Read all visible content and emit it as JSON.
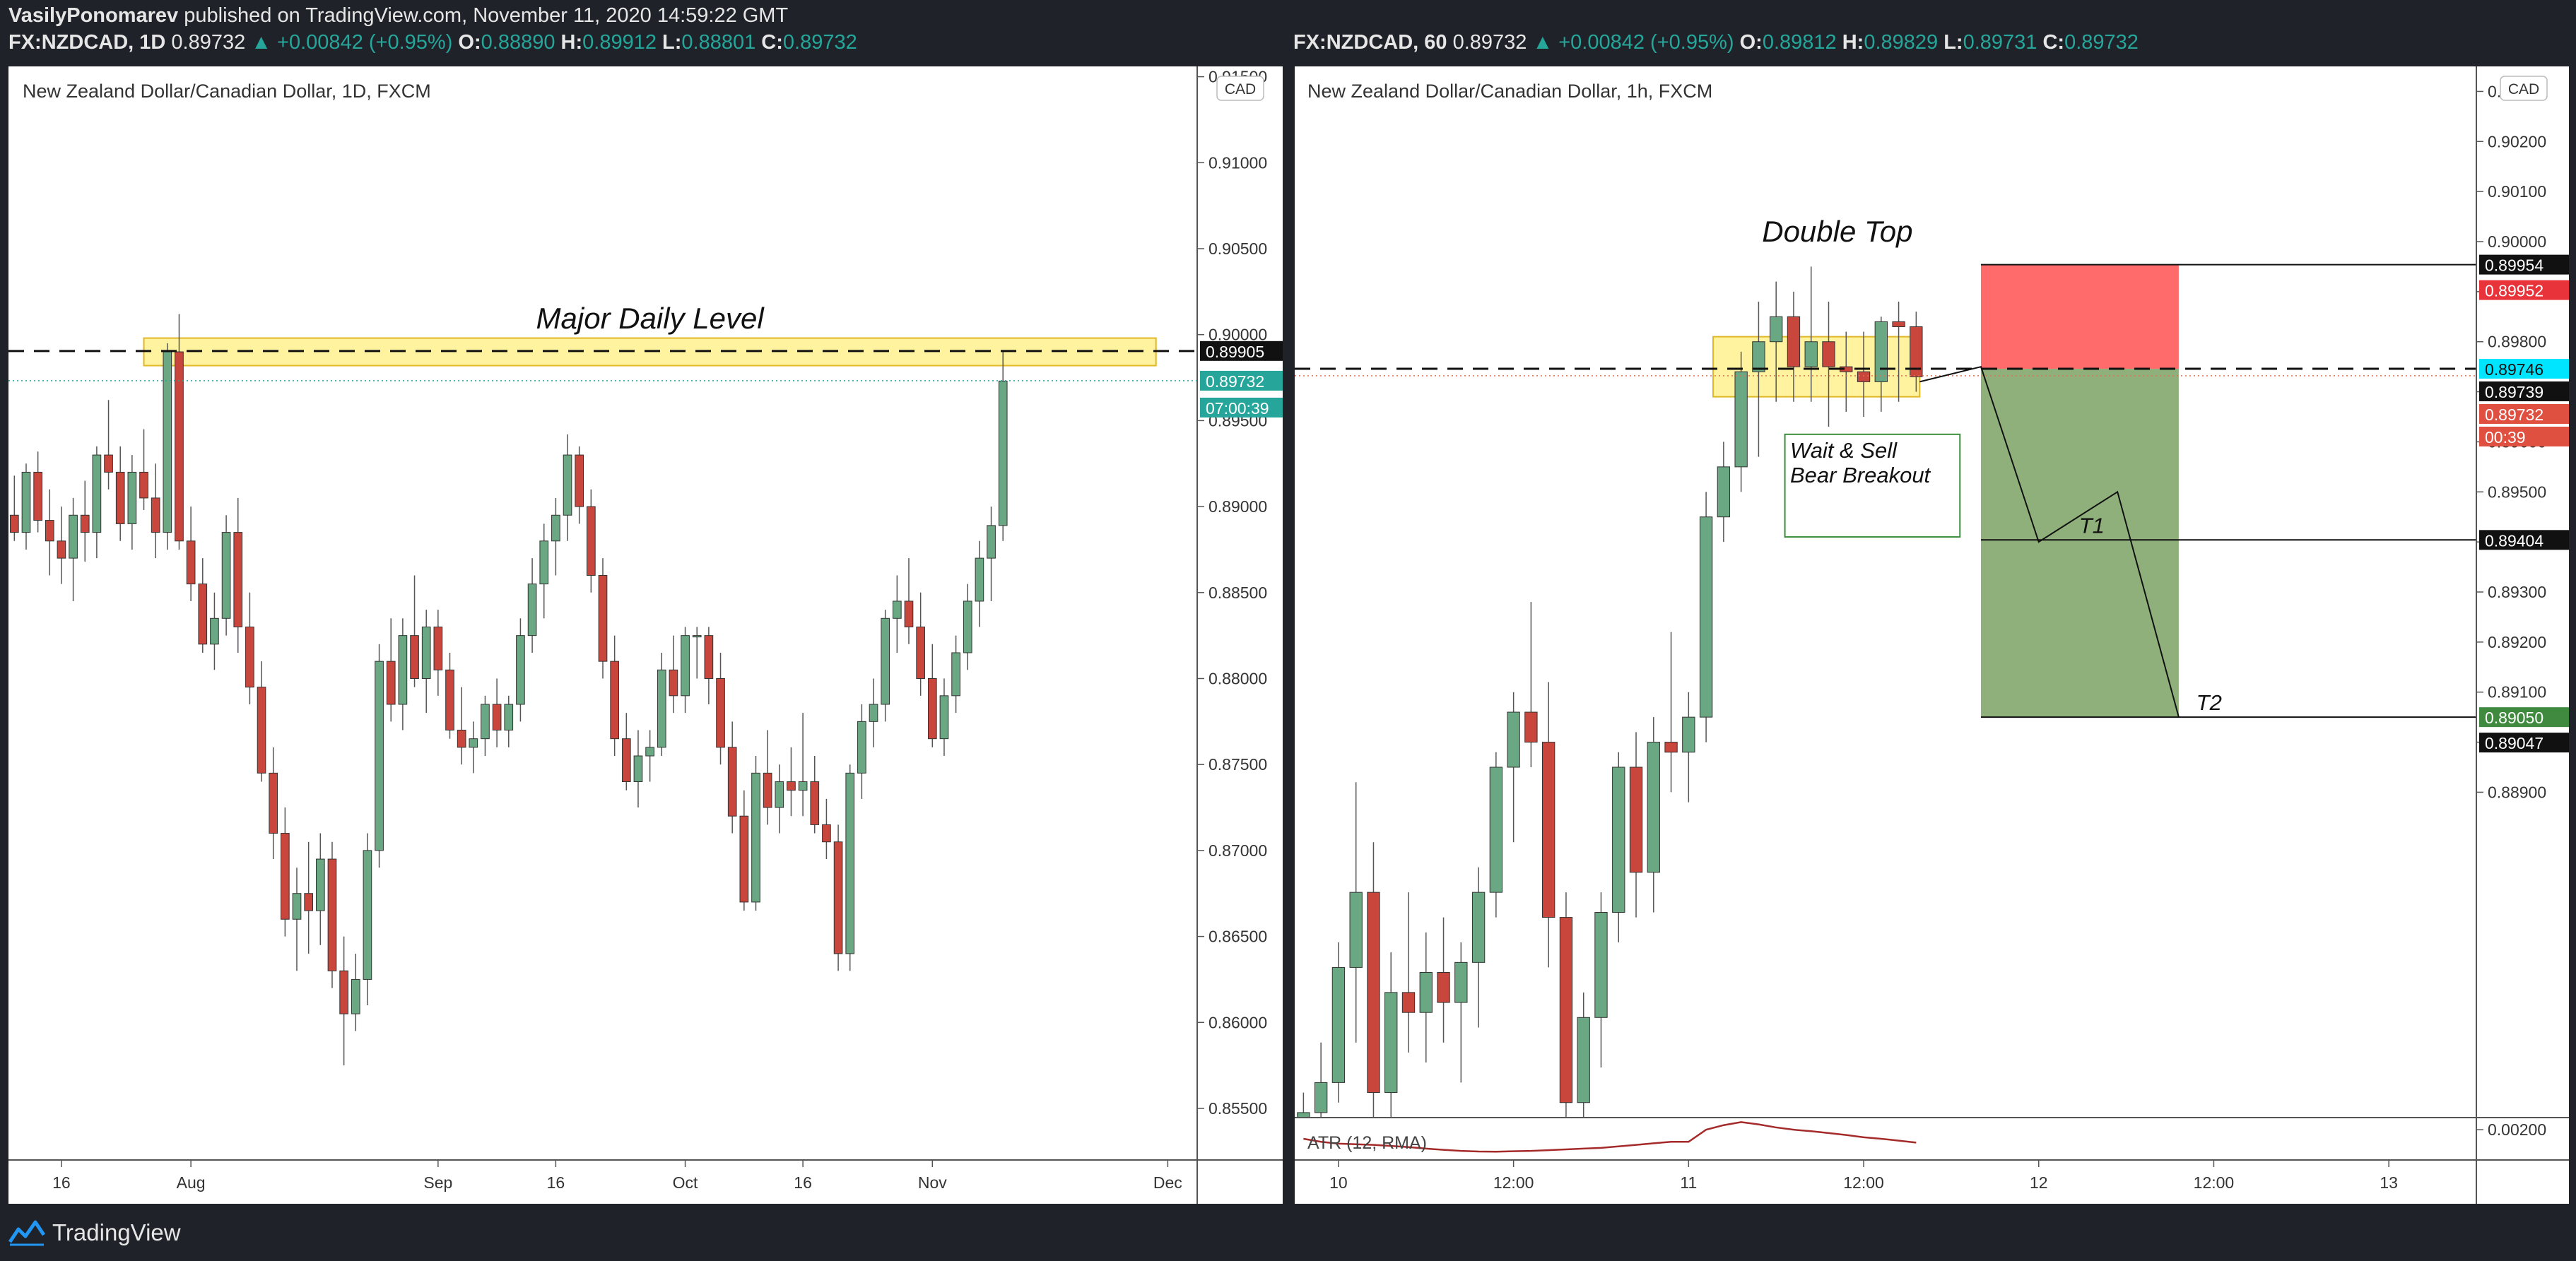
{
  "header": {
    "author": "VasilyPonomarev",
    "published_text": "published on TradingView.com, November 11, 2020 14:59:22 GMT"
  },
  "left_info": {
    "symbol": "FX:NZDCAD, 1D",
    "price": "0.89732",
    "change": "▲ +0.00842 (+0.95%)",
    "o_label": "O:",
    "o": "0.88890",
    "h_label": "H:",
    "h": "0.89912",
    "l_label": "L:",
    "l": "0.88801",
    "c_label": "C:",
    "c": "0.89732"
  },
  "right_info": {
    "symbol": "FX:NZDCAD, 60",
    "price": "0.89732",
    "change": "▲ +0.00842 (+0.95%)",
    "o_label": "O:",
    "o": "0.89812",
    "h_label": "H:",
    "h": "0.89829",
    "l_label": "L:",
    "l": "0.89731",
    "c_label": "C:",
    "c": "0.89732"
  },
  "footer": {
    "brand": "TradingView"
  },
  "colors": {
    "bull": "#6aa883",
    "bear": "#c9463d",
    "wick": "#555555",
    "level_fill": "#fff3a0",
    "level_border": "#e0b726",
    "stop_fill": "#ff6b6b",
    "target_fill": "#8fb07a",
    "atr": "#a52a2a",
    "accent_teal": "#26a69a"
  },
  "chart_data": [
    {
      "type": "candlestick",
      "title": "New Zealand Dollar/Canadian Dollar, 1D, FXCM",
      "currency_badge": "CAD",
      "ylim": [
        0.852,
        0.9156
      ],
      "y_ticks": [
        "0.85500",
        "0.86000",
        "0.86500",
        "0.87000",
        "0.87500",
        "0.88000",
        "0.88500",
        "0.89000",
        "0.89500",
        "0.90000",
        "0.90500",
        "0.91000",
        "0.91500"
      ],
      "x_labels": [
        {
          "label": "16",
          "bar": 4
        },
        {
          "label": "Aug",
          "bar": 15
        },
        {
          "label": "Sep",
          "bar": 36
        },
        {
          "label": "16",
          "bar": 46
        },
        {
          "label": "Oct",
          "bar": 57
        },
        {
          "label": "16",
          "bar": 67
        },
        {
          "label": "Nov",
          "bar": 78
        },
        {
          "label": "Dec",
          "bar": 98
        }
      ],
      "x_domain": [
        -0.5,
        100.5
      ],
      "candles": [
        [
          0.8895,
          0.8918,
          0.888,
          0.8885
        ],
        [
          0.8885,
          0.8925,
          0.8875,
          0.892
        ],
        [
          0.892,
          0.8932,
          0.8885,
          0.8892
        ],
        [
          0.8892,
          0.891,
          0.886,
          0.888
        ],
        [
          0.888,
          0.89,
          0.8855,
          0.887
        ],
        [
          0.887,
          0.8905,
          0.8845,
          0.8895
        ],
        [
          0.8895,
          0.8915,
          0.8868,
          0.8885
        ],
        [
          0.8885,
          0.8935,
          0.887,
          0.893
        ],
        [
          0.893,
          0.8962,
          0.891,
          0.892
        ],
        [
          0.892,
          0.8935,
          0.888,
          0.889
        ],
        [
          0.889,
          0.893,
          0.8875,
          0.892
        ],
        [
          0.892,
          0.8945,
          0.8898,
          0.8905
        ],
        [
          0.8905,
          0.8925,
          0.887,
          0.8885
        ],
        [
          0.8885,
          0.8995,
          0.8875,
          0.899
        ],
        [
          0.899,
          0.9012,
          0.8875,
          0.888
        ],
        [
          0.888,
          0.89,
          0.8845,
          0.8855
        ],
        [
          0.8855,
          0.887,
          0.8815,
          0.882
        ],
        [
          0.882,
          0.885,
          0.8805,
          0.8835
        ],
        [
          0.8835,
          0.8895,
          0.8825,
          0.8885
        ],
        [
          0.8885,
          0.8905,
          0.8815,
          0.883
        ],
        [
          0.883,
          0.885,
          0.8785,
          0.8795
        ],
        [
          0.8795,
          0.881,
          0.874,
          0.8745
        ],
        [
          0.8745,
          0.876,
          0.8695,
          0.871
        ],
        [
          0.871,
          0.8725,
          0.865,
          0.866
        ],
        [
          0.866,
          0.869,
          0.863,
          0.8675
        ],
        [
          0.8675,
          0.8705,
          0.864,
          0.8665
        ],
        [
          0.8665,
          0.871,
          0.8645,
          0.8695
        ],
        [
          0.8695,
          0.8705,
          0.862,
          0.863
        ],
        [
          0.863,
          0.865,
          0.8575,
          0.8605
        ],
        [
          0.8605,
          0.864,
          0.8595,
          0.8625
        ],
        [
          0.8625,
          0.871,
          0.861,
          0.87
        ],
        [
          0.87,
          0.882,
          0.869,
          0.881
        ],
        [
          0.881,
          0.8835,
          0.8775,
          0.8785
        ],
        [
          0.8785,
          0.8835,
          0.877,
          0.8825
        ],
        [
          0.8825,
          0.886,
          0.8795,
          0.88
        ],
        [
          0.88,
          0.884,
          0.878,
          0.883
        ],
        [
          0.883,
          0.884,
          0.879,
          0.8805
        ],
        [
          0.8805,
          0.8815,
          0.8765,
          0.877
        ],
        [
          0.877,
          0.8795,
          0.875,
          0.876
        ],
        [
          0.876,
          0.8775,
          0.8745,
          0.8765
        ],
        [
          0.8765,
          0.879,
          0.8755,
          0.8785
        ],
        [
          0.8785,
          0.88,
          0.876,
          0.877
        ],
        [
          0.877,
          0.879,
          0.876,
          0.8785
        ],
        [
          0.8785,
          0.8835,
          0.8775,
          0.8825
        ],
        [
          0.8825,
          0.887,
          0.8815,
          0.8855
        ],
        [
          0.8855,
          0.889,
          0.8835,
          0.888
        ],
        [
          0.888,
          0.8905,
          0.886,
          0.8895
        ],
        [
          0.8895,
          0.8942,
          0.888,
          0.893
        ],
        [
          0.893,
          0.8935,
          0.889,
          0.89
        ],
        [
          0.89,
          0.891,
          0.885,
          0.886
        ],
        [
          0.886,
          0.887,
          0.88,
          0.881
        ],
        [
          0.881,
          0.8825,
          0.8755,
          0.8765
        ],
        [
          0.8765,
          0.878,
          0.8735,
          0.874
        ],
        [
          0.874,
          0.877,
          0.8725,
          0.8755
        ],
        [
          0.8755,
          0.877,
          0.874,
          0.876
        ],
        [
          0.876,
          0.8815,
          0.8755,
          0.8805
        ],
        [
          0.8805,
          0.8825,
          0.878,
          0.879
        ],
        [
          0.879,
          0.883,
          0.878,
          0.8825
        ],
        [
          0.8825,
          0.883,
          0.88,
          0.8825
        ],
        [
          0.8825,
          0.883,
          0.8785,
          0.88
        ],
        [
          0.88,
          0.8815,
          0.875,
          0.876
        ],
        [
          0.876,
          0.8775,
          0.871,
          0.872
        ],
        [
          0.872,
          0.8735,
          0.8665,
          0.867
        ],
        [
          0.867,
          0.8755,
          0.8665,
          0.8745
        ],
        [
          0.8745,
          0.877,
          0.8715,
          0.8725
        ],
        [
          0.8725,
          0.875,
          0.871,
          0.874
        ],
        [
          0.874,
          0.876,
          0.872,
          0.8735
        ],
        [
          0.8735,
          0.878,
          0.872,
          0.874
        ],
        [
          0.874,
          0.8755,
          0.871,
          0.8715
        ],
        [
          0.8715,
          0.873,
          0.8695,
          0.8705
        ],
        [
          0.8705,
          0.8715,
          0.863,
          0.864
        ],
        [
          0.864,
          0.875,
          0.863,
          0.8745
        ],
        [
          0.8745,
          0.8785,
          0.873,
          0.8775
        ],
        [
          0.8775,
          0.88,
          0.876,
          0.8785
        ],
        [
          0.8785,
          0.884,
          0.8775,
          0.8835
        ],
        [
          0.8835,
          0.886,
          0.8815,
          0.8845
        ],
        [
          0.8845,
          0.887,
          0.882,
          0.883
        ],
        [
          0.883,
          0.885,
          0.879,
          0.88
        ],
        [
          0.88,
          0.882,
          0.876,
          0.8765
        ],
        [
          0.8765,
          0.88,
          0.8755,
          0.879
        ],
        [
          0.879,
          0.8825,
          0.878,
          0.8815
        ],
        [
          0.8815,
          0.8855,
          0.8805,
          0.8845
        ],
        [
          0.8845,
          0.888,
          0.883,
          0.887
        ],
        [
          0.887,
          0.89,
          0.8845,
          0.8889
        ],
        [
          0.8889,
          0.8991,
          0.888,
          0.8973
        ]
      ],
      "level": {
        "label": "Major Daily Level",
        "price": 0.89905,
        "zone": [
          0.8982,
          0.8998
        ]
      },
      "labels": {
        "level_price": "0.89905",
        "last_price": "0.89732",
        "countdown": "07:00:39"
      }
    },
    {
      "type": "candlestick",
      "title": "New Zealand Dollar/Canadian Dollar, 1h, FXCM",
      "currency_badge": "CAD",
      "ylim": [
        0.8825,
        0.9035
      ],
      "y_ticks": [
        "0.88900",
        "0.89000",
        "0.89100",
        "0.89200",
        "0.89300",
        "0.89400",
        "0.89500",
        "0.89600",
        "0.89700",
        "0.89800",
        "0.89900",
        "0.90000",
        "0.90100",
        "0.90200",
        "0.90300"
      ],
      "x_labels": [
        {
          "label": "10",
          "bar": 2
        },
        {
          "label": "12:00",
          "bar": 12
        },
        {
          "label": "11",
          "bar": 22
        },
        {
          "label": "12:00",
          "bar": 32
        },
        {
          "label": "12",
          "bar": 42
        },
        {
          "label": "12:00",
          "bar": 52
        },
        {
          "label": "13",
          "bar": 62
        }
      ],
      "x_domain": [
        -0.5,
        67
      ],
      "candles": [
        [
          0.881,
          0.883,
          0.8802,
          0.8826
        ],
        [
          0.8826,
          0.884,
          0.8815,
          0.8832
        ],
        [
          0.8832,
          0.886,
          0.8828,
          0.8855
        ],
        [
          0.8855,
          0.8892,
          0.884,
          0.887
        ],
        [
          0.887,
          0.888,
          0.8825,
          0.883
        ],
        [
          0.883,
          0.8858,
          0.8822,
          0.885
        ],
        [
          0.885,
          0.887,
          0.8838,
          0.8846
        ],
        [
          0.8846,
          0.8862,
          0.8836,
          0.8854
        ],
        [
          0.8854,
          0.8865,
          0.884,
          0.8848
        ],
        [
          0.8848,
          0.886,
          0.8832,
          0.8856
        ],
        [
          0.8856,
          0.8875,
          0.8843,
          0.887
        ],
        [
          0.887,
          0.8898,
          0.8865,
          0.8895
        ],
        [
          0.8895,
          0.891,
          0.888,
          0.8906
        ],
        [
          0.8906,
          0.8928,
          0.8895,
          0.89
        ],
        [
          0.89,
          0.8912,
          0.8855,
          0.8865
        ],
        [
          0.8865,
          0.887,
          0.8822,
          0.8828
        ],
        [
          0.8828,
          0.885,
          0.882,
          0.8845
        ],
        [
          0.8845,
          0.887,
          0.8835,
          0.8866
        ],
        [
          0.8866,
          0.8898,
          0.886,
          0.8895
        ],
        [
          0.8895,
          0.8902,
          0.8865,
          0.8874
        ],
        [
          0.8874,
          0.8905,
          0.8866,
          0.89
        ],
        [
          0.89,
          0.8922,
          0.889,
          0.8898
        ],
        [
          0.8898,
          0.891,
          0.8888,
          0.8905
        ],
        [
          0.8905,
          0.895,
          0.89,
          0.8945
        ],
        [
          0.8945,
          0.896,
          0.894,
          0.8955
        ],
        [
          0.8955,
          0.8978,
          0.895,
          0.8974
        ],
        [
          0.8974,
          0.8988,
          0.8957,
          0.898
        ],
        [
          0.898,
          0.8992,
          0.8968,
          0.8985
        ],
        [
          0.8985,
          0.899,
          0.8968,
          0.8975
        ],
        [
          0.8975,
          0.8995,
          0.8968,
          0.898
        ],
        [
          0.898,
          0.8988,
          0.8963,
          0.8975
        ],
        [
          0.8975,
          0.8982,
          0.8966,
          0.8974
        ],
        [
          0.8974,
          0.8982,
          0.8965,
          0.8972
        ],
        [
          0.8972,
          0.8985,
          0.8966,
          0.8984
        ],
        [
          0.8984,
          0.8988,
          0.8968,
          0.8983
        ],
        [
          0.8983,
          0.8986,
          0.897,
          0.8973
        ]
      ],
      "atr": {
        "label": "ATR (12, RMA)",
        "tick": "0.00200",
        "values": [
          0.0014,
          0.0012,
          0.00108,
          0.00104,
          0.001,
          0.00093,
          0.00085,
          0.00075,
          0.00067,
          0.0006,
          0.00056,
          0.00055,
          0.00058,
          0.0006,
          0.00065,
          0.0007,
          0.00075,
          0.0008,
          0.0009,
          0.001,
          0.0011,
          0.0012,
          0.0012,
          0.002,
          0.0023,
          0.0025,
          0.00235,
          0.00215,
          0.002,
          0.0019,
          0.00178,
          0.00165,
          0.0015,
          0.0014,
          0.00128,
          0.00115
        ]
      },
      "double_top": {
        "label": "Double Top"
      },
      "note": {
        "line1": "Wait & Sell",
        "line2": "Bear Breakout"
      },
      "level": {
        "price": 0.89746,
        "zone": [
          0.8969,
          0.8981
        ]
      },
      "trade": {
        "entry": 0.89746,
        "stop": 0.89954,
        "t1": 0.89404,
        "t2": 0.8905,
        "t1_label": "T1",
        "t2_label": "T2",
        "start_bar": 38.7,
        "end_bar": 50
      },
      "path": [
        [
          35.2,
          0.8972
        ],
        [
          38.7,
          0.8975
        ],
        [
          42,
          0.894
        ],
        [
          46.5,
          0.895
        ],
        [
          50,
          0.8905
        ]
      ],
      "labels": {
        "stop": "0.89954",
        "stop_red": "0.89952",
        "entry": "0.89746",
        "p739": "0.89739",
        "last": "0.89732",
        "countdown": "00:39",
        "t1": "0.89404",
        "t2_green": "0.89050",
        "t2_black": "0.89047"
      }
    }
  ]
}
